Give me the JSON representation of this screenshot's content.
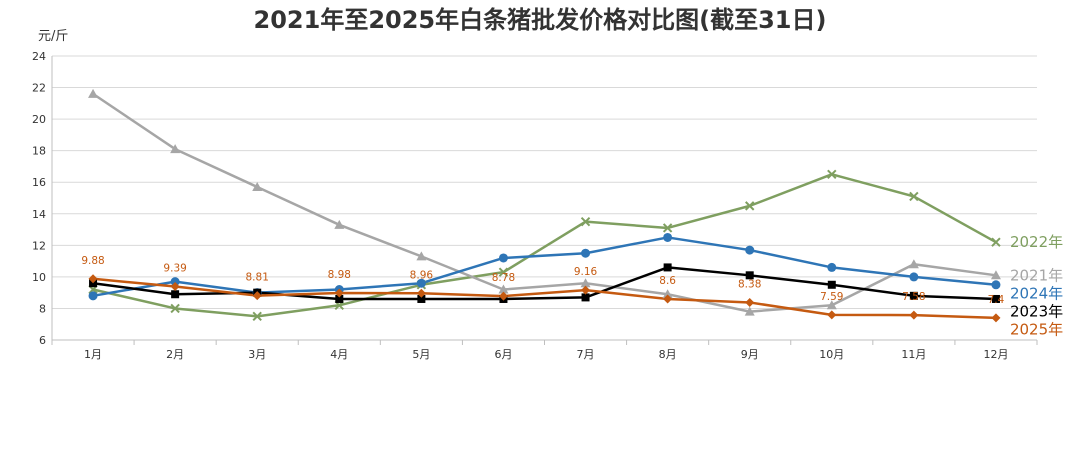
{
  "chart_data": {
    "type": "line",
    "title": "2021年至2025年白条猪批发价格对比图(截至31日)",
    "ylabel": "元/斤",
    "xlabel": "",
    "ylim": [
      6,
      24
    ],
    "yticks": [
      6,
      8,
      10,
      12,
      14,
      16,
      18,
      20,
      22,
      24
    ],
    "grid": true,
    "categories": [
      "1月",
      "2月",
      "3月",
      "4月",
      "5月",
      "6月",
      "7月",
      "8月",
      "9月",
      "10月",
      "11月",
      "12月"
    ],
    "series": [
      {
        "name": "2022年",
        "color": "#7f9f60",
        "marker": "x",
        "values": [
          9.2,
          8.0,
          7.5,
          8.2,
          9.5,
          10.3,
          13.5,
          13.1,
          14.5,
          16.5,
          15.1,
          12.2
        ]
      },
      {
        "name": "2021年",
        "color": "#a6a6a6",
        "marker": "triangle",
        "values": [
          21.6,
          18.1,
          15.7,
          13.3,
          11.3,
          9.2,
          9.6,
          8.9,
          7.8,
          8.2,
          10.8,
          10.1
        ]
      },
      {
        "name": "2024年",
        "color": "#2e75b6",
        "marker": "circle",
        "values": [
          8.8,
          9.7,
          9.0,
          9.2,
          9.6,
          11.2,
          11.5,
          12.5,
          11.7,
          10.6,
          10.0,
          9.5
        ]
      },
      {
        "name": "2023年",
        "color": "#000000",
        "marker": "square",
        "values": [
          9.6,
          8.9,
          9.0,
          8.6,
          8.6,
          8.6,
          8.7,
          10.6,
          10.1,
          9.5,
          8.8,
          8.6
        ]
      },
      {
        "name": "2025年",
        "color": "#c55a11",
        "marker": "diamond",
        "values": [
          9.88,
          9.39,
          8.81,
          8.98,
          8.96,
          8.78,
          9.16,
          8.6,
          8.38,
          7.59,
          7.58,
          7.4
        ],
        "labels": [
          "9.88",
          "9.39",
          "8.81",
          "8.98",
          "8.96",
          "8.78",
          "9.16",
          "8.6",
          "8.38",
          "7.59",
          "7.58",
          "7.4"
        ]
      }
    ]
  }
}
